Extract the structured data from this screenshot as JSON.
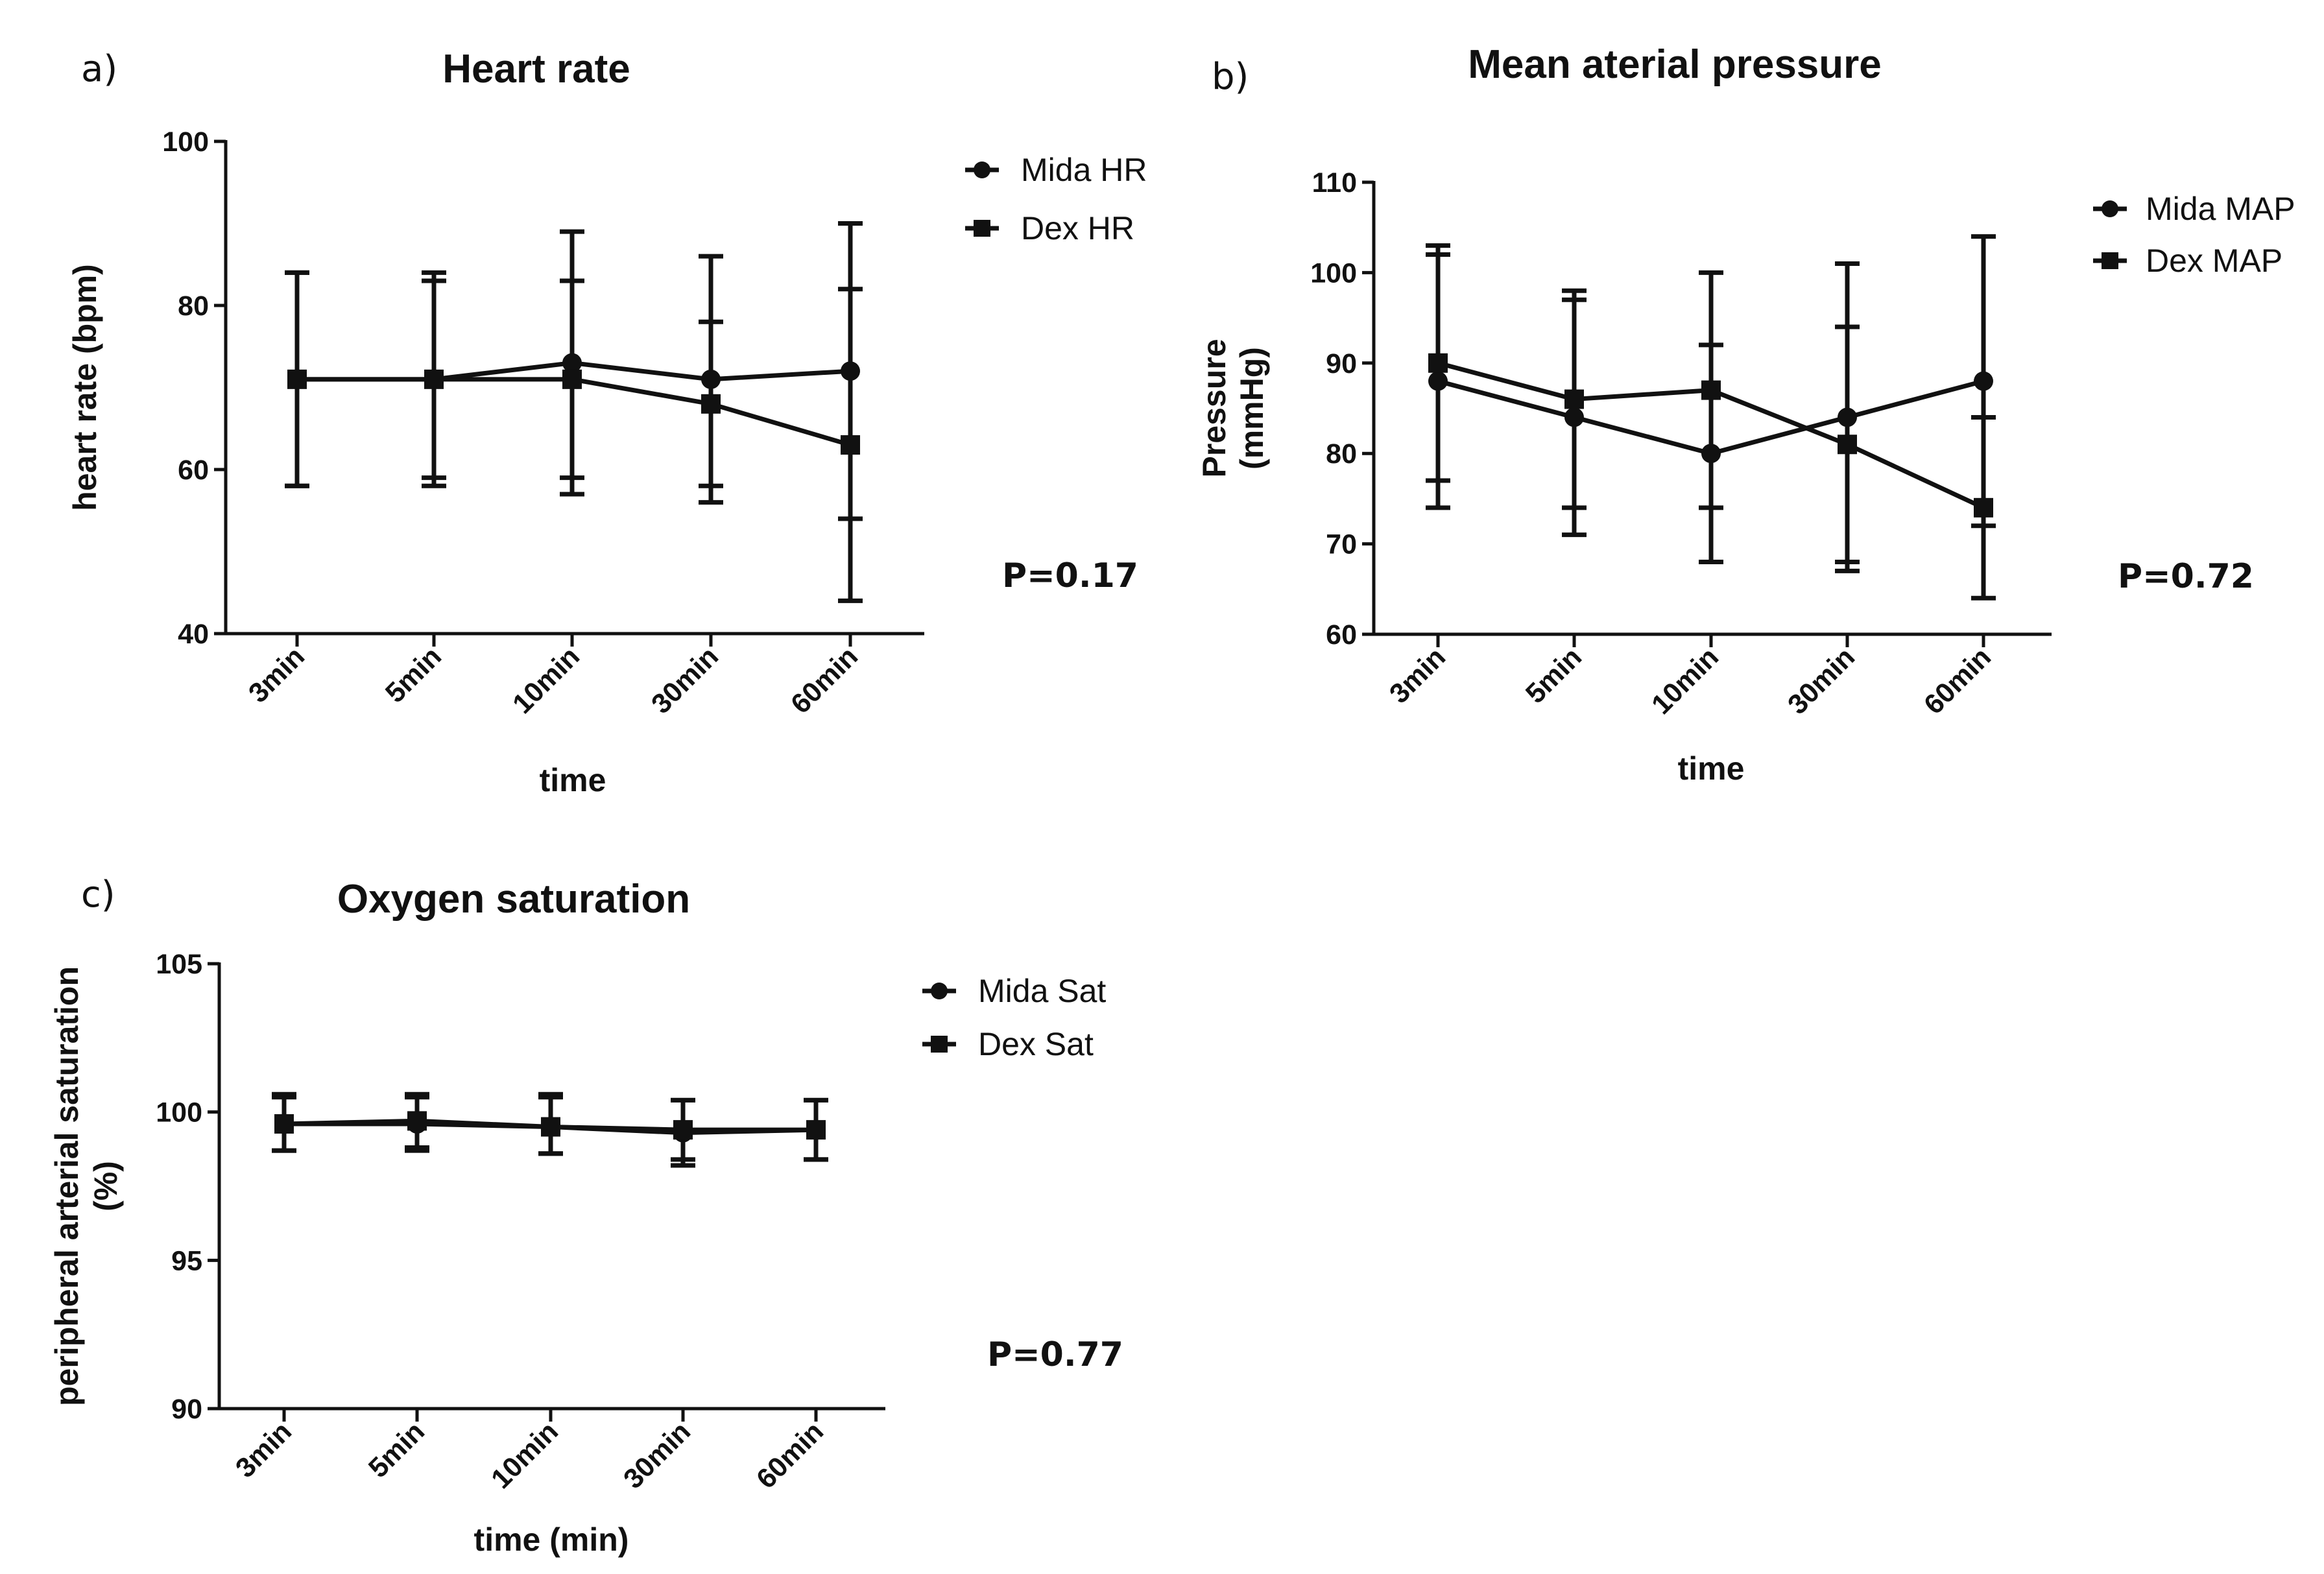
{
  "chart_data": [
    {
      "type": "line",
      "panel_label": "a)",
      "title": "Heart rate",
      "xlabel": "time",
      "ylabel": "heart rate (bpm)",
      "ylabel_lines": [
        "heart rate (bpm)"
      ],
      "categories": [
        "3min",
        "5min",
        "10min",
        "30min",
        "60min"
      ],
      "ylim": [
        40,
        100
      ],
      "yticks": [
        40,
        60,
        80,
        100
      ],
      "ytick_labels": [
        "40",
        "60",
        "80",
        "100"
      ],
      "series": [
        {
          "name": "Mida HR",
          "marker": "circle",
          "values": [
            71,
            71,
            73,
            71,
            72
          ],
          "err_low": [
            58,
            58,
            57,
            56,
            54
          ],
          "err_high": [
            84,
            84,
            83,
            78,
            82
          ]
        },
        {
          "name": "Dex HR",
          "marker": "square",
          "values": [
            71,
            71,
            71,
            68,
            63
          ],
          "err_low": [
            58,
            59,
            59,
            58,
            44
          ],
          "err_high": [
            84,
            83,
            89,
            86,
            90
          ]
        }
      ],
      "annotation": "P=0.17",
      "legend_position": "right"
    },
    {
      "type": "line",
      "panel_label": "b)",
      "title": "Mean aterial pressure",
      "xlabel": "time",
      "ylabel": "Pressure (mmHg)",
      "ylabel_lines": [
        "Pressure",
        "(mmHg)"
      ],
      "categories": [
        "3min",
        "5min",
        "10min",
        "30min",
        "60min"
      ],
      "ylim": [
        60,
        110
      ],
      "yticks": [
        60,
        70,
        80,
        90,
        100,
        110
      ],
      "ytick_labels": [
        "60",
        "70",
        "80",
        "90",
        "100",
        "110"
      ],
      "series": [
        {
          "name": "Mida MAP",
          "marker": "circle",
          "values": [
            88,
            84,
            80,
            84,
            88
          ],
          "err_low": [
            74,
            71,
            68,
            67,
            72
          ],
          "err_high": [
            102,
            97,
            92,
            101,
            104
          ]
        },
        {
          "name": "Dex MAP",
          "marker": "square",
          "values": [
            90,
            86,
            87,
            81,
            74
          ],
          "err_low": [
            77,
            74,
            74,
            68,
            64
          ],
          "err_high": [
            103,
            98,
            100,
            94,
            84
          ]
        }
      ],
      "annotation": "P=0.72",
      "legend_position": "right"
    },
    {
      "type": "line",
      "panel_label": "c)",
      "title": "Oxygen saturation",
      "xlabel": "time (min)",
      "ylabel": "peripheral arterial saturation (%)",
      "ylabel_lines": [
        "peripheral arterial saturation",
        "(%)"
      ],
      "categories": [
        "3min",
        "5min",
        "10min",
        "30min",
        "60min"
      ],
      "ylim": [
        90,
        105
      ],
      "yticks": [
        90,
        95,
        100,
        105
      ],
      "ytick_labels": [
        "90",
        "95",
        "100",
        "105"
      ],
      "series": [
        {
          "name": "Mida Sat",
          "marker": "circle",
          "values": [
            99.6,
            99.6,
            99.5,
            99.3,
            99.4
          ],
          "err_low": [
            98.7,
            98.7,
            98.6,
            98.2,
            98.4
          ],
          "err_high": [
            100.5,
            100.5,
            100.5,
            100.4,
            100.4
          ]
        },
        {
          "name": "Dex Sat",
          "marker": "square",
          "values": [
            99.6,
            99.7,
            99.5,
            99.4,
            99.4
          ],
          "err_low": [
            98.7,
            98.8,
            98.6,
            98.4,
            98.4
          ],
          "err_high": [
            100.6,
            100.6,
            100.6,
            100.4,
            100.4
          ]
        }
      ],
      "annotation": "P=0.77",
      "legend_position": "right"
    }
  ]
}
